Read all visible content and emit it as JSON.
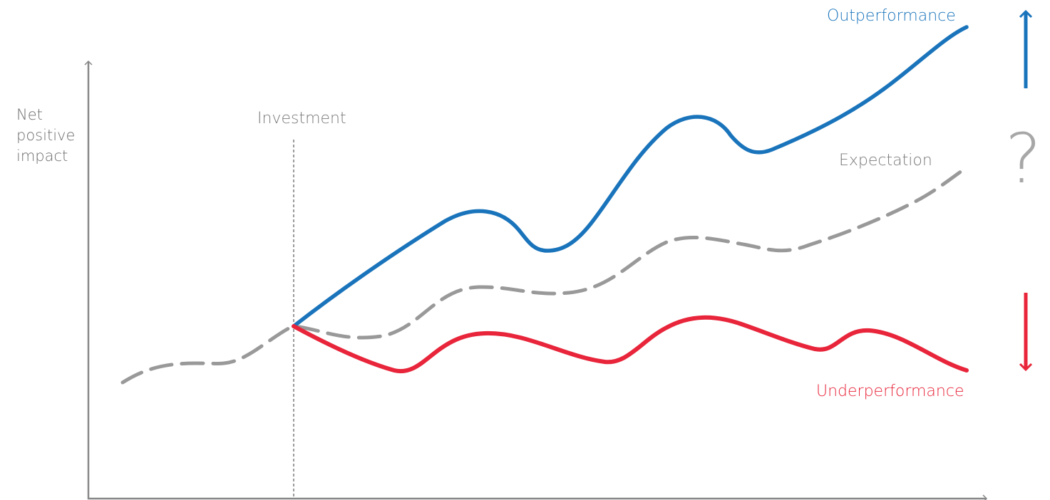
{
  "y_axis_label": [
    "Net",
    "positive",
    "impact"
  ],
  "investment_label": "Investment",
  "expectation_label": "Expectation",
  "outperformance_label": "Outperformance",
  "underperformance_label": "Underperformance",
  "uncertainty_symbol": "?",
  "colors": {
    "outperformance": "#1a74bb",
    "underperformance": "#e8253a",
    "expectation": "#999999",
    "axis": "#888888",
    "text": "#6d6e70"
  }
}
